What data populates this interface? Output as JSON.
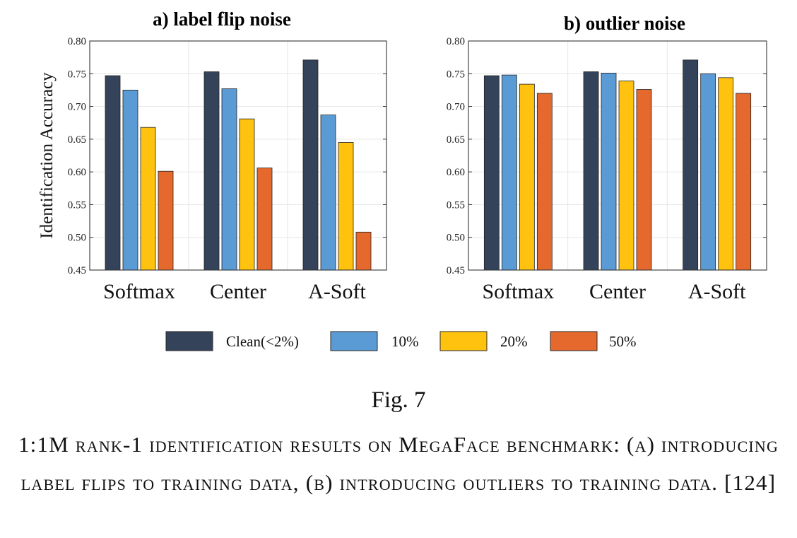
{
  "figure": {
    "y_axis_label": "Identification Accuracy",
    "legend": [
      {
        "label": "Clean(<2%)",
        "color": "#34435a"
      },
      {
        "label": "10%",
        "color": "#5b9bd5"
      },
      {
        "label": "20%",
        "color": "#ffc20e"
      },
      {
        "label": "50%",
        "color": "#e5692c"
      }
    ],
    "fig_label": "Fig. 7",
    "caption": "1:1M rank-1 identification results on MegaFace benchmark: (a) introducing label flips to training data, (b) introducing outliers to training data. [124]"
  },
  "chart_data": [
    {
      "type": "bar",
      "title": "a) label flip noise",
      "ylabel": "Identification Accuracy",
      "ylim": [
        0.45,
        0.8
      ],
      "yticks": [
        "0.45",
        "0.50",
        "0.55",
        "0.60",
        "0.65",
        "0.70",
        "0.75",
        "0.80"
      ],
      "grid": true,
      "categories": [
        "Softmax",
        "Center",
        "A-Soft"
      ],
      "series": [
        {
          "name": "Clean(<2%)",
          "values": [
            0.747,
            0.753,
            0.771
          ]
        },
        {
          "name": "10%",
          "values": [
            0.725,
            0.727,
            0.687
          ]
        },
        {
          "name": "20%",
          "values": [
            0.668,
            0.681,
            0.645
          ]
        },
        {
          "name": "50%",
          "values": [
            0.601,
            0.606,
            0.508
          ]
        }
      ]
    },
    {
      "type": "bar",
      "title": "b) outlier noise",
      "ylabel": "",
      "ylim": [
        0.45,
        0.8
      ],
      "yticks": [
        "0.45",
        "0.50",
        "0.55",
        "0.60",
        "0.65",
        "0.70",
        "0.75",
        "0.80"
      ],
      "grid": true,
      "categories": [
        "Softmax",
        "Center",
        "A-Soft"
      ],
      "series": [
        {
          "name": "Clean(<2%)",
          "values": [
            0.747,
            0.753,
            0.771
          ]
        },
        {
          "name": "10%",
          "values": [
            0.748,
            0.751,
            0.75
          ]
        },
        {
          "name": "20%",
          "values": [
            0.734,
            0.739,
            0.744
          ]
        },
        {
          "name": "50%",
          "values": [
            0.72,
            0.726,
            0.72
          ]
        }
      ]
    }
  ]
}
